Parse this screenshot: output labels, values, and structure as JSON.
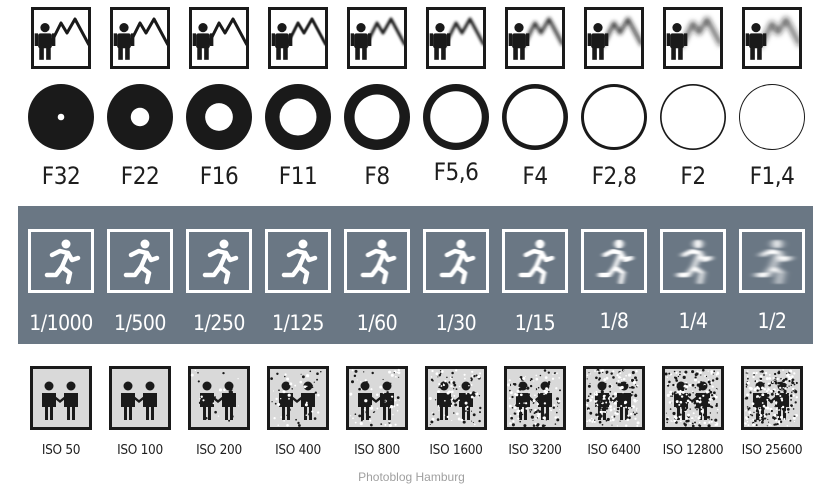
{
  "depth_of_field": {
    "count": 10,
    "blur_levels": [
      0,
      0,
      0,
      0.6,
      1.0,
      1.4,
      1.8,
      2.2,
      2.6,
      3.0
    ]
  },
  "aperture": {
    "labels": [
      "F32",
      "F22",
      "F16",
      "F11",
      "F8",
      "F5,6",
      "F4",
      "F2,8",
      "F2",
      "F1,4"
    ],
    "opening_fraction": [
      0.1,
      0.28,
      0.42,
      0.56,
      0.68,
      0.78,
      0.86,
      0.91,
      0.95,
      0.97
    ]
  },
  "shutter": {
    "labels": [
      "1/1000",
      "1/500",
      "1/250",
      "1/125",
      "1/60",
      "1/30",
      "1/15",
      "1/8",
      "1/4",
      "1/2"
    ],
    "motion_blur_levels": [
      0,
      0,
      0,
      0,
      0.4,
      0.8,
      1.2,
      2.0,
      3.0,
      4.0
    ],
    "band_color": "#6a7784"
  },
  "iso": {
    "labels": [
      "ISO 50",
      "ISO 100",
      "ISO 200",
      "ISO 400",
      "ISO 800",
      "ISO 1600",
      "ISO 3200",
      "ISO 6400",
      "ISO 12800",
      "ISO 25600"
    ],
    "noise_levels": [
      0,
      0,
      0.1,
      0.2,
      0.3,
      0.4,
      0.55,
      0.7,
      0.85,
      1.0
    ]
  },
  "footer": {
    "credit": "Photoblog Hamburg"
  },
  "icons": {
    "dof": "person-mountain-icon",
    "aperture": "aperture-ring-icon",
    "shutter": "running-person-icon",
    "iso": "handshake-people-icon"
  }
}
